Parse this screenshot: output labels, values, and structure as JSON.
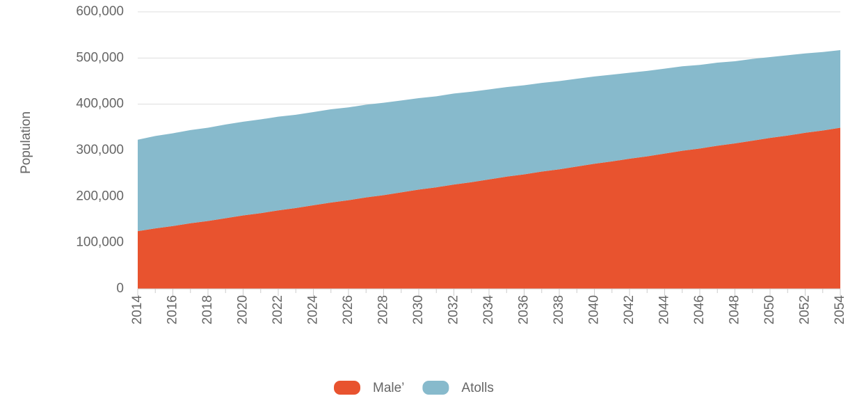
{
  "chart_data": {
    "type": "area",
    "stacked": true,
    "y_label": "Population",
    "x": [
      2014,
      2015,
      2016,
      2017,
      2018,
      2019,
      2020,
      2021,
      2022,
      2023,
      2024,
      2025,
      2026,
      2027,
      2028,
      2029,
      2030,
      2031,
      2032,
      2033,
      2034,
      2035,
      2036,
      2037,
      2038,
      2039,
      2040,
      2041,
      2042,
      2043,
      2044,
      2045,
      2046,
      2047,
      2048,
      2049,
      2050,
      2051,
      2052,
      2053,
      2054
    ],
    "series": [
      {
        "name": "Male’",
        "color": "#e8532f",
        "values": [
          125000,
          131000,
          136000,
          142000,
          147000,
          153000,
          159000,
          164000,
          170000,
          175000,
          181000,
          187000,
          192000,
          198000,
          203000,
          209000,
          215000,
          220000,
          226000,
          231000,
          237000,
          243000,
          248000,
          254000,
          259000,
          265000,
          271000,
          276000,
          282000,
          287000,
          293000,
          299000,
          304000,
          310000,
          315000,
          321000,
          327000,
          332000,
          338000,
          343000,
          349000
        ]
      },
      {
        "name": "Atolls",
        "color": "#87bacc",
        "values": [
          198000,
          200000,
          201000,
          202000,
          202000,
          203000,
          203000,
          203000,
          203000,
          202000,
          202000,
          202000,
          201000,
          201000,
          200000,
          199000,
          198000,
          197000,
          197000,
          196000,
          195000,
          194000,
          193000,
          192000,
          191000,
          190000,
          189000,
          188000,
          186000,
          185000,
          184000,
          183000,
          181000,
          180000,
          178000,
          177000,
          175000,
          174000,
          172000,
          170000,
          168000
        ]
      }
    ],
    "xlim": [
      2014,
      2054
    ],
    "xticks": [
      2014,
      2016,
      2018,
      2020,
      2022,
      2024,
      2026,
      2028,
      2030,
      2032,
      2034,
      2036,
      2038,
      2040,
      2042,
      2044,
      2046,
      2048,
      2050,
      2052,
      2054
    ],
    "ylim": [
      0,
      600000
    ],
    "yticks": [
      0,
      {
        "value": 100000,
        "label": "100,000"
      },
      {
        "value": 200000,
        "label": "200,000"
      },
      {
        "value": 300000,
        "label": "300,000"
      },
      {
        "value": 400000,
        "label": "400,000"
      },
      {
        "value": 500000,
        "label": "500,000"
      },
      {
        "value": 600000,
        "label": "600,000"
      }
    ],
    "grid": true
  }
}
